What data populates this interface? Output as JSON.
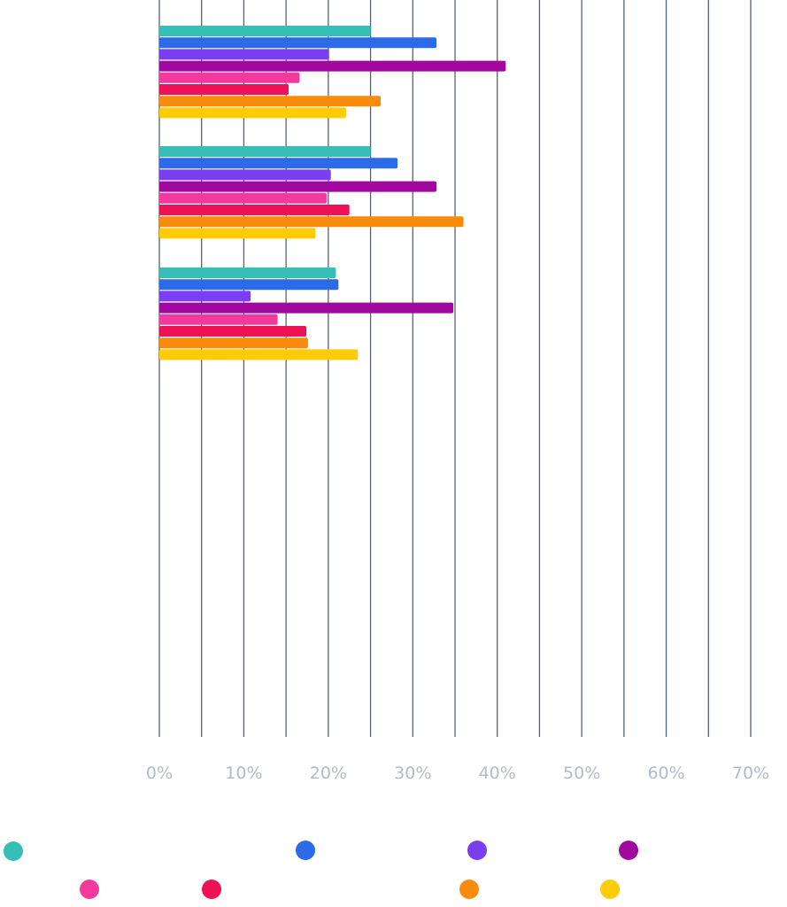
{
  "chart_data": {
    "type": "bar",
    "orientation": "horizontal",
    "xlim": [
      0,
      70
    ],
    "ticks": [
      "0%",
      "10%",
      "20%",
      "30%",
      "40%",
      "50%",
      "60%",
      "70%"
    ],
    "grid": true,
    "legend_placement": "bottom",
    "groups": [
      {
        "values": [
          25.0,
          32.8,
          20.1,
          41.0,
          16.6,
          15.3,
          26.2,
          22.1
        ]
      },
      {
        "values": [
          25.0,
          28.2,
          20.3,
          32.8,
          19.8,
          22.5,
          36.0,
          18.5
        ]
      },
      {
        "values": [
          20.9,
          21.2,
          10.8,
          34.8,
          14.0,
          17.4,
          17.6,
          23.5
        ]
      }
    ],
    "series": [
      {
        "name": "",
        "color": "#36bfb8"
      },
      {
        "name": "",
        "color": "#2d6ae7"
      },
      {
        "name": "",
        "color": "#7b3ff2"
      },
      {
        "name": "",
        "color": "#a0089e"
      },
      {
        "name": "",
        "color": "#f23a9e"
      },
      {
        "name": "",
        "color": "#ee1155"
      },
      {
        "name": "",
        "color": "#f98c0c"
      },
      {
        "name": "",
        "color": "#fdcc06"
      }
    ]
  }
}
